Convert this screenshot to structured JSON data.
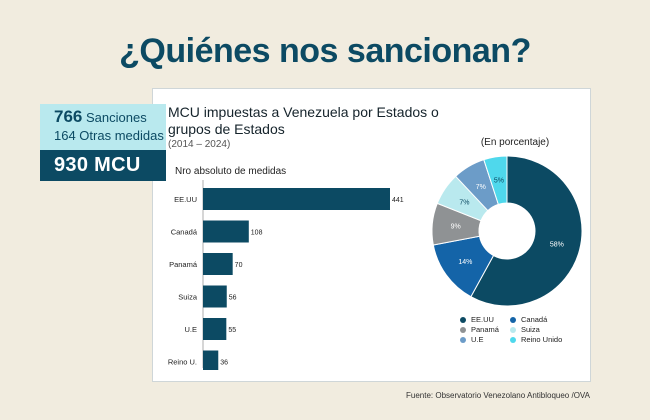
{
  "header": {
    "title": "¿Quiénes nos sancionan?"
  },
  "summary": {
    "sanctions_number": "766",
    "sanctions_label": "Sanciones",
    "other_measures": "164 Otras medidas",
    "total": "930 MCU"
  },
  "source": "Fuente: Observatorio Venezolano Antibloqueo /OVA",
  "chart_data": [
    {
      "type": "bar",
      "title": "MCU impuestas a Venezuela por Estados o grupos de Estados",
      "subtitle": "(2014 – 2024)",
      "xlabel": "Nro absoluto de medidas",
      "ylabel": "",
      "categories": [
        "EE.UU",
        "Canadá",
        "Panamá",
        "Suiza",
        "U.E",
        "Reino U."
      ],
      "values": [
        441,
        108,
        70,
        56,
        55,
        36
      ],
      "data_labels": [
        "441",
        "108",
        "70",
        "56",
        "55",
        "36"
      ],
      "xlim": [
        0,
        441
      ],
      "grid": false,
      "bar_color": "#0c4a63"
    },
    {
      "type": "pie",
      "title": "(En porcentaje)",
      "categories": [
        "EE.UU",
        "Canadá",
        "Panamá",
        "Suiza",
        "U.E",
        "Reino Unido"
      ],
      "values": [
        58,
        14,
        9,
        7,
        7,
        5
      ],
      "data_labels": [
        "58%",
        "14%",
        "9%",
        "7%",
        "7%",
        "5%"
      ],
      "colors": [
        "#0c4a63",
        "#1464a8",
        "#8f9294",
        "#b9e9ee",
        "#6c9cc8",
        "#4fd8ec"
      ],
      "legend_position": "bottom"
    }
  ]
}
